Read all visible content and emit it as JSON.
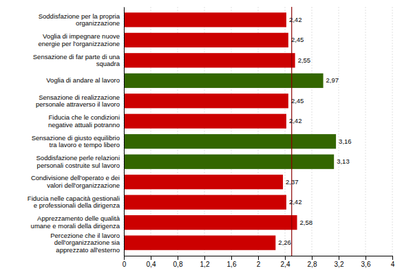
{
  "chart_data": {
    "type": "bar",
    "orientation": "horizontal",
    "categories": [
      "Soddisfazione per la propria\norganizzazione",
      "Voglia di impegnare nuove\nenergie per l'organizzazione",
      "Sensazione di far parte di una\nsquadra",
      "Voglia di andare al lavoro",
      "Sensazione di realizzazione\npersonale attraverso il lavoro",
      "Fiducia che le condizioni\nnegative attuali potranno",
      "Sensazione di giusto equilibrio\ntra lavoro e tempo libero",
      "Soddisfazione perle relazioni\npersonali costruite sul lavoro",
      "Condivisione dell'operato e dei\nvalori dell'organizzazione",
      "Fiducia nelle capacità gestionali\ne professionali della dirigenza",
      "Apprezzamento delle qualità\numane e morali della dirigenza",
      "Percezione che il lavoro\ndell'organizzazione sia\napprezzato all'esterno"
    ],
    "values": [
      2.42,
      2.45,
      2.55,
      2.97,
      2.45,
      2.42,
      3.16,
      3.13,
      2.37,
      2.42,
      2.58,
      2.26
    ],
    "value_labels": [
      "2,42",
      "2,45",
      "2,55",
      "2,97",
      "2,45",
      "2,42",
      "3,16",
      "3,13",
      "2,37",
      "2,42",
      "2,58",
      "2,26"
    ],
    "data_labels": true,
    "colors": [
      "#cc0000",
      "#cc0000",
      "#cc0000",
      "#336600",
      "#cc0000",
      "#cc0000",
      "#336600",
      "#336600",
      "#cc0000",
      "#cc0000",
      "#cc0000",
      "#cc0000"
    ],
    "xlim": [
      0,
      4
    ],
    "xticks": [
      0,
      {
        "value": 0.4,
        "label": "0,4"
      },
      {
        "value": 0.8,
        "label": "0,8"
      },
      {
        "value": 1.2,
        "label": "1,2"
      },
      {
        "value": 1.6,
        "label": "1,6"
      },
      2,
      {
        "value": 2.4,
        "label": "2,4"
      },
      {
        "value": 2.8,
        "label": "2,8"
      },
      {
        "value": 3.2,
        "label": "3,2"
      },
      {
        "value": 3.6,
        "label": "3,6"
      },
      4
    ],
    "grid": true,
    "reference_line": {
      "x": 2.5,
      "color": "#8b0000"
    }
  }
}
